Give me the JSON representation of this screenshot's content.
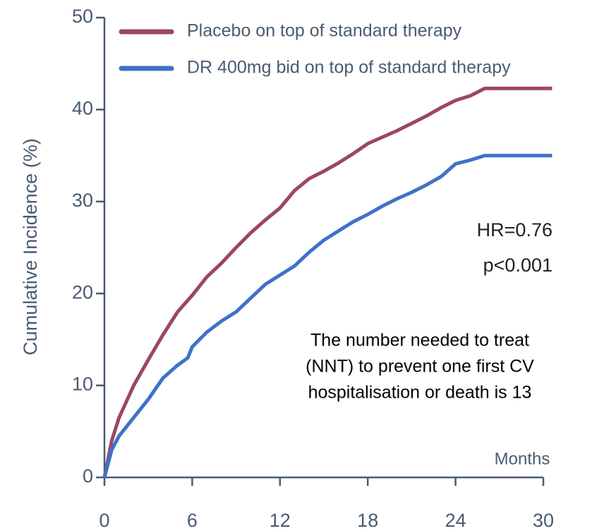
{
  "chart_data": {
    "type": "line",
    "ylabel": "Cumulative Incidence (%)",
    "xlabel": "Months",
    "xlim": [
      0,
      30
    ],
    "xticks": [
      0,
      6,
      12,
      18,
      24,
      30
    ],
    "ylim": [
      0,
      50
    ],
    "yticks": [
      0,
      10,
      20,
      30,
      40,
      50
    ],
    "series": [
      {
        "name": "Placebo on top of standard therapy",
        "color": "#9b4764",
        "x": [
          0,
          0.5,
          1,
          2,
          3,
          4,
          5,
          6,
          7,
          8,
          9,
          10,
          11,
          12,
          13,
          14,
          15,
          16,
          17,
          18,
          19,
          20,
          21,
          22,
          23,
          24,
          25,
          26,
          30.6
        ],
        "values": [
          0,
          4,
          6.5,
          10,
          12.8,
          15.5,
          18,
          19.8,
          21.8,
          23.3,
          25,
          26.6,
          28,
          29.3,
          31.2,
          32.5,
          33.3,
          34.2,
          35.2,
          36.3,
          37,
          37.7,
          38.5,
          39.3,
          40.2,
          41,
          41.5,
          42.3,
          42.3
        ]
      },
      {
        "name": "DR 400mg bid on top of standard therapy",
        "color": "#3e72c8",
        "x": [
          0,
          0.5,
          1,
          2,
          3,
          4,
          5,
          5.7,
          6,
          7,
          8,
          9,
          10,
          11,
          12,
          13,
          14,
          15,
          16,
          17,
          18,
          19,
          20,
          21,
          22,
          23,
          24,
          25,
          26,
          30.6
        ],
        "values": [
          0,
          3,
          4.5,
          6.5,
          8.5,
          10.8,
          12.2,
          13,
          14.2,
          15.8,
          17,
          18,
          19.5,
          21,
          22,
          23,
          24.5,
          25.8,
          26.8,
          27.8,
          28.6,
          29.5,
          30.3,
          31,
          31.8,
          32.7,
          34.1,
          34.5,
          35,
          35
        ]
      }
    ],
    "annotations": [
      "HR=0.76",
      "p<0.001"
    ],
    "note": [
      "The number needed to treat",
      "(NNT) to prevent one first CV",
      "hospitalisation or death is 13"
    ]
  }
}
